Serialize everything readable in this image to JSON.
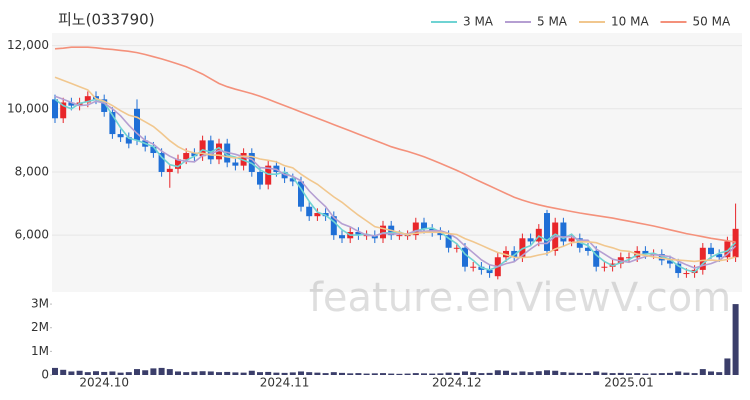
{
  "chart_data": {
    "type": "candlestick",
    "title": "피노(033790)",
    "watermark": "feature.enViewV.com",
    "categories": [
      null,
      null,
      null,
      null,
      null,
      null,
      "2024.10",
      null,
      null,
      null,
      null,
      null,
      null,
      null,
      null,
      null,
      null,
      null,
      null,
      null,
      null,
      null,
      null,
      null,
      null,
      null,
      null,
      null,
      "2024.11",
      null,
      null,
      null,
      null,
      null,
      null,
      null,
      null,
      null,
      null,
      null,
      null,
      null,
      null,
      null,
      null,
      null,
      null,
      null,
      null,
      "2024.12",
      null,
      null,
      null,
      null,
      null,
      null,
      null,
      null,
      null,
      null,
      null,
      null,
      null,
      null,
      null,
      null,
      null,
      null,
      null,
      null,
      "2025.01",
      null,
      null,
      null,
      null,
      null,
      null,
      null,
      null,
      null,
      null,
      null,
      null,
      null
    ],
    "open": [
      10300,
      9700,
      10200,
      10100,
      10200,
      10400,
      10300,
      9900,
      9200,
      9100,
      10000,
      9000,
      8800,
      8600,
      8000,
      8100,
      8400,
      8600,
      8500,
      9000,
      8400,
      8900,
      8300,
      8200,
      8600,
      8000,
      7600,
      8200,
      8000,
      7800,
      7700,
      6900,
      6600,
      6700,
      6600,
      6000,
      5900,
      6100,
      6000,
      6000,
      5900,
      6300,
      6000,
      6000,
      6000,
      6400,
      6200,
      6100,
      6000,
      5600,
      5600,
      5000,
      5000,
      4900,
      4700,
      5300,
      5500,
      5300,
      5900,
      5800,
      6700,
      5500,
      6400,
      5800,
      5900,
      5600,
      5500,
      5000,
      5000,
      5100,
      5300,
      5300,
      5500,
      5400,
      5400,
      5200,
      5100,
      4800,
      4800,
      4900,
      5600,
      5400,
      5300,
      5300
    ],
    "high": [
      10450,
      10350,
      10350,
      10350,
      10550,
      10550,
      10450,
      10050,
      9350,
      9250,
      10300,
      9150,
      8950,
      8750,
      8250,
      8550,
      8750,
      8750,
      9150,
      9150,
      9050,
      9050,
      8450,
      8750,
      8750,
      8150,
      8350,
      8350,
      8150,
      7950,
      7850,
      7050,
      6850,
      6850,
      6750,
      6150,
      6250,
      6250,
      6150,
      6150,
      6450,
      6450,
      6150,
      6150,
      6550,
      6550,
      6350,
      6250,
      6150,
      5750,
      5750,
      5150,
      5150,
      5050,
      5450,
      5650,
      5650,
      6050,
      6050,
      6350,
      6800,
      6550,
      6550,
      6050,
      6050,
      5750,
      5650,
      5150,
      5250,
      5450,
      5450,
      5650,
      5650,
      5550,
      5550,
      5350,
      5250,
      4950,
      5050,
      5750,
      5750,
      5550,
      5950,
      7000
    ],
    "low": [
      9550,
      9550,
      9950,
      9950,
      10050,
      10150,
      9750,
      9050,
      8950,
      8750,
      8850,
      8650,
      8450,
      7850,
      7500,
      7950,
      8250,
      8350,
      8350,
      8250,
      8250,
      8150,
      8050,
      8050,
      7850,
      7450,
      7450,
      7850,
      7650,
      7550,
      6750,
      6450,
      6450,
      6450,
      5850,
      5750,
      5750,
      5850,
      5850,
      5750,
      5750,
      5850,
      5850,
      5850,
      5850,
      6050,
      5950,
      5850,
      5450,
      5450,
      4850,
      4850,
      4750,
      4650,
      4600,
      5150,
      5150,
      5150,
      5650,
      5650,
      5350,
      5350,
      5650,
      5650,
      5450,
      5350,
      4850,
      4850,
      4850,
      4950,
      5150,
      5150,
      5250,
      5250,
      5050,
      4950,
      4650,
      4650,
      4650,
      4750,
      5250,
      5150,
      5150,
      5150
    ],
    "close": [
      9700,
      10200,
      10100,
      10200,
      10400,
      10300,
      9900,
      9200,
      9100,
      8900,
      9000,
      8800,
      8600,
      8000,
      8100,
      8400,
      8600,
      8500,
      9000,
      8400,
      8900,
      8300,
      8200,
      8600,
      8000,
      7600,
      8200,
      8000,
      7800,
      7700,
      6900,
      6600,
      6700,
      6600,
      6000,
      5900,
      6100,
      6000,
      6000,
      5900,
      6300,
      6000,
      6000,
      6000,
      6400,
      6200,
      6100,
      6000,
      5600,
      5600,
      5000,
      5000,
      4900,
      4800,
      5300,
      5500,
      5300,
      5900,
      5800,
      6200,
      5500,
      6400,
      5800,
      5900,
      5600,
      5500,
      5000,
      5000,
      5100,
      5300,
      5300,
      5500,
      5400,
      5400,
      5200,
      5100,
      4800,
      4800,
      4900,
      5600,
      5400,
      5300,
      5800,
      6200
    ],
    "up_color": "#e8262a",
    "down_color": "#1f6fd6",
    "series": [
      {
        "name": "3 MA",
        "color": "#6fd3d3",
        "values": [
          10300,
          10100,
          10000,
          10170,
          10230,
          10300,
          10200,
          9800,
          9400,
          9070,
          9000,
          8900,
          8800,
          8470,
          8230,
          8170,
          8370,
          8500,
          8700,
          8630,
          8770,
          8530,
          8470,
          8370,
          8270,
          8070,
          7930,
          7930,
          8000,
          7830,
          7470,
          7070,
          6730,
          6630,
          6430,
          6170,
          6000,
          6000,
          6030,
          5970,
          6070,
          6070,
          6100,
          6000,
          6130,
          6200,
          6230,
          6100,
          5900,
          5730,
          5400,
          5200,
          4970,
          4900,
          5000,
          5200,
          5370,
          5570,
          5670,
          5970,
          5830,
          6030,
          5900,
          6030,
          5770,
          5670,
          5370,
          5170,
          5030,
          5130,
          5230,
          5370,
          5400,
          5430,
          5330,
          5230,
          5030,
          4900,
          4830,
          5100,
          5300,
          5430,
          5500,
          5770
        ]
      },
      {
        "name": "5 MA",
        "color": "#b59fd2",
        "values": [
          10400,
          10300,
          10200,
          10100,
          10120,
          10240,
          10180,
          10000,
          9780,
          9480,
          9220,
          9000,
          8880,
          8660,
          8500,
          8380,
          8340,
          8320,
          8520,
          8580,
          8680,
          8620,
          8560,
          8480,
          8400,
          8140,
          8120,
          8080,
          7920,
          7860,
          7720,
          7400,
          7140,
          6900,
          6560,
          6360,
          6260,
          6120,
          6000,
          5980,
          6060,
          6040,
          6040,
          6040,
          6140,
          6120,
          6140,
          6140,
          6060,
          5900,
          5660,
          5440,
          5220,
          5060,
          5000,
          5100,
          5160,
          5360,
          5560,
          5740,
          5740,
          5960,
          5940,
          5960,
          5840,
          5840,
          5560,
          5400,
          5240,
          5180,
          5140,
          5240,
          5320,
          5380,
          5360,
          5320,
          5180,
          5060,
          4960,
          5040,
          5100,
          5200,
          5400,
          5660
        ]
      },
      {
        "name": "10 MA",
        "color": "#f1c78e",
        "values": [
          11000,
          10900,
          10800,
          10700,
          10600,
          10320,
          10240,
          10100,
          9940,
          9800,
          9730,
          9590,
          9440,
          9220,
          8990,
          8800,
          8670,
          8600,
          8590,
          8540,
          8530,
          8480,
          8440,
          8500,
          8490,
          8410,
          8370,
          8320,
          8200,
          8130,
          7930,
          7760,
          7610,
          7410,
          7210,
          7040,
          6830,
          6630,
          6450,
          6270,
          6210,
          6150,
          6080,
          6020,
          6060,
          6090,
          6090,
          6090,
          6050,
          6020,
          5890,
          5790,
          5680,
          5560,
          5450,
          5380,
          5300,
          5290,
          5310,
          5370,
          5420,
          5560,
          5650,
          5760,
          5790,
          5790,
          5760,
          5670,
          5600,
          5510,
          5490,
          5400,
          5360,
          5310,
          5270,
          5230,
          5210,
          5190,
          5170,
          5200,
          5210,
          5190,
          5230,
          5310
        ]
      },
      {
        "name": "50 MA",
        "color": "#f4917b",
        "values": [
          11900,
          11920,
          11950,
          11950,
          11950,
          11930,
          11900,
          11880,
          11850,
          11820,
          11780,
          11720,
          11650,
          11580,
          11500,
          11420,
          11330,
          11220,
          11100,
          10950,
          10800,
          10700,
          10620,
          10550,
          10480,
          10400,
          10300,
          10200,
          10100,
          10000,
          9900,
          9800,
          9700,
          9600,
          9500,
          9400,
          9300,
          9200,
          9100,
          9000,
          8900,
          8800,
          8720,
          8650,
          8570,
          8480,
          8380,
          8270,
          8160,
          8050,
          7930,
          7800,
          7680,
          7560,
          7440,
          7320,
          7200,
          7110,
          7030,
          6960,
          6900,
          6850,
          6800,
          6750,
          6700,
          6660,
          6620,
          6580,
          6540,
          6490,
          6440,
          6390,
          6340,
          6290,
          6230,
          6170,
          6110,
          6050,
          6000,
          5950,
          5900,
          5860,
          5820,
          5780
        ]
      }
    ],
    "ylim": [
      4200,
      12400
    ],
    "yticks": [
      {
        "value": 6000,
        "label": "6,000"
      },
      {
        "value": 8000,
        "label": "8,000"
      },
      {
        "value": 10000,
        "label": "10,000"
      },
      {
        "value": 12000,
        "label": "12,000"
      }
    ],
    "volume": {
      "color": "#3b3e6a",
      "values": [
        300000,
        220000,
        150000,
        180000,
        120000,
        160000,
        130000,
        150000,
        100000,
        120000,
        250000,
        200000,
        280000,
        300000,
        250000,
        150000,
        120000,
        140000,
        160000,
        150000,
        120000,
        130000,
        110000,
        100000,
        180000,
        120000,
        130000,
        100000,
        90000,
        110000,
        150000,
        120000,
        100000,
        80000,
        120000,
        90000,
        70000,
        80000,
        60000,
        70000,
        80000,
        60000,
        50000,
        60000,
        80000,
        70000,
        60000,
        70000,
        100000,
        90000,
        150000,
        120000,
        80000,
        90000,
        200000,
        180000,
        100000,
        150000,
        120000,
        160000,
        200000,
        180000,
        120000,
        100000,
        90000,
        80000,
        150000,
        100000,
        80000,
        90000,
        70000,
        80000,
        60000,
        70000,
        80000,
        90000,
        150000,
        100000,
        80000,
        250000,
        150000,
        120000,
        700000,
        3000000
      ],
      "ylim": [
        0,
        3300000
      ],
      "yticks": [
        0,
        {
          "value": 1000000,
          "label": "1M"
        },
        {
          "value": 2000000,
          "label": "2M"
        },
        {
          "value": 3000000,
          "label": "3M"
        }
      ]
    },
    "legend": "top-right"
  }
}
